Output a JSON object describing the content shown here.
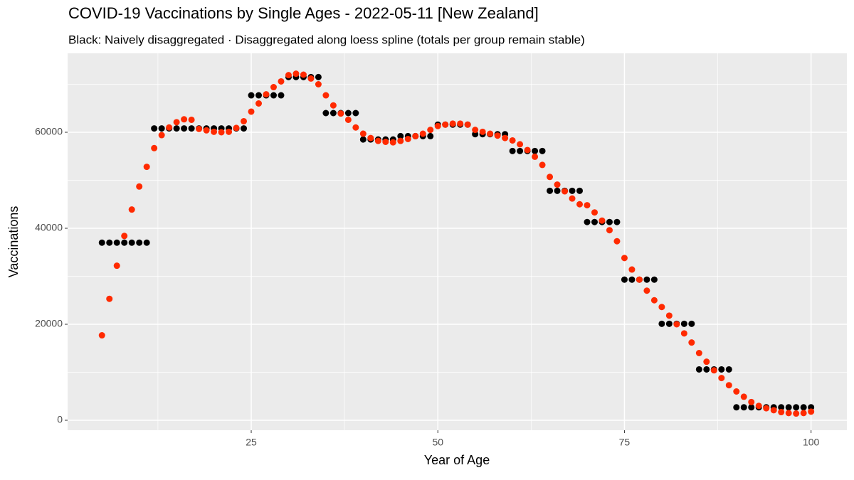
{
  "chart_data": {
    "type": "scatter",
    "title": "COVID-19 Vaccinations by Single Ages - 2022-05-11 [New Zealand]",
    "subtitle": "Black: Naively disaggregated · Disaggregated along loess spline (totals per group remain stable)",
    "x_label": "Year of Age",
    "y_label": "Vaccinations",
    "x": [
      5,
      6,
      7,
      8,
      9,
      10,
      11,
      12,
      13,
      14,
      15,
      16,
      17,
      18,
      19,
      20,
      21,
      22,
      23,
      24,
      25,
      26,
      27,
      28,
      29,
      30,
      31,
      32,
      33,
      34,
      35,
      36,
      37,
      38,
      39,
      40,
      41,
      42,
      43,
      44,
      45,
      46,
      47,
      48,
      49,
      50,
      51,
      52,
      53,
      54,
      55,
      56,
      57,
      58,
      59,
      60,
      61,
      62,
      63,
      64,
      65,
      66,
      67,
      68,
      69,
      70,
      71,
      72,
      73,
      74,
      75,
      76,
      77,
      78,
      79,
      80,
      81,
      82,
      83,
      84,
      85,
      86,
      87,
      88,
      89,
      90,
      91,
      92,
      93,
      94,
      95,
      96,
      97,
      98,
      99,
      100
    ],
    "series": [
      {
        "color": "#000000",
        "values": [
          37000,
          37000,
          37000,
          37000,
          37000,
          37000,
          37000,
          60800,
          60800,
          60800,
          60800,
          60800,
          60800,
          60800,
          60800,
          60800,
          60800,
          60800,
          60800,
          60800,
          67700,
          67700,
          67700,
          67700,
          67700,
          71500,
          71500,
          71500,
          71500,
          71500,
          64000,
          64000,
          64000,
          64000,
          64000,
          58500,
          58500,
          58500,
          58500,
          58500,
          59200,
          59200,
          59200,
          59200,
          59200,
          61600,
          61600,
          61600,
          61600,
          61600,
          59600,
          59600,
          59600,
          59600,
          59600,
          56100,
          56100,
          56100,
          56100,
          56100,
          47800,
          47800,
          47800,
          47800,
          47800,
          41300,
          41300,
          41300,
          41300,
          41300,
          29300,
          29300,
          29300,
          29300,
          29300,
          20100,
          20100,
          20100,
          20100,
          20100,
          10600,
          10600,
          10600,
          10600,
          10600,
          2700,
          2700,
          2700,
          2700,
          2700,
          2700,
          2700,
          2700,
          2700,
          2700,
          2700
        ]
      },
      {
        "color": "#ff2a00",
        "values": [
          17700,
          25300,
          32200,
          38400,
          43900,
          48700,
          52800,
          56700,
          59400,
          61000,
          62100,
          62700,
          62600,
          60700,
          60400,
          60100,
          60000,
          60100,
          60900,
          62300,
          64300,
          66000,
          67900,
          69400,
          70600,
          71900,
          72200,
          72000,
          71200,
          70000,
          67700,
          65600,
          63900,
          62600,
          61000,
          59700,
          58800,
          58200,
          58000,
          57900,
          58200,
          58600,
          59200,
          59700,
          60500,
          61300,
          61600,
          61800,
          61800,
          61600,
          60500,
          60100,
          59700,
          59300,
          58800,
          58300,
          57500,
          56300,
          54900,
          53200,
          50700,
          49100,
          47700,
          46200,
          45000,
          44800,
          43300,
          41600,
          39600,
          37300,
          33800,
          31400,
          29300,
          27000,
          25000,
          23600,
          21800,
          20000,
          18100,
          16200,
          14000,
          12200,
          10400,
          8800,
          7300,
          6000,
          4900,
          3800,
          3000,
          2500,
          2100,
          1700,
          1500,
          1400,
          1500,
          1800
        ]
      }
    ],
    "xlim": [
      0.4,
      104.8
    ],
    "ylim": [
      -2074,
      76444
    ],
    "xticks": [
      25,
      50,
      75,
      100
    ],
    "yticks": [
      0,
      20000,
      40000,
      60000
    ],
    "grid": true
  }
}
